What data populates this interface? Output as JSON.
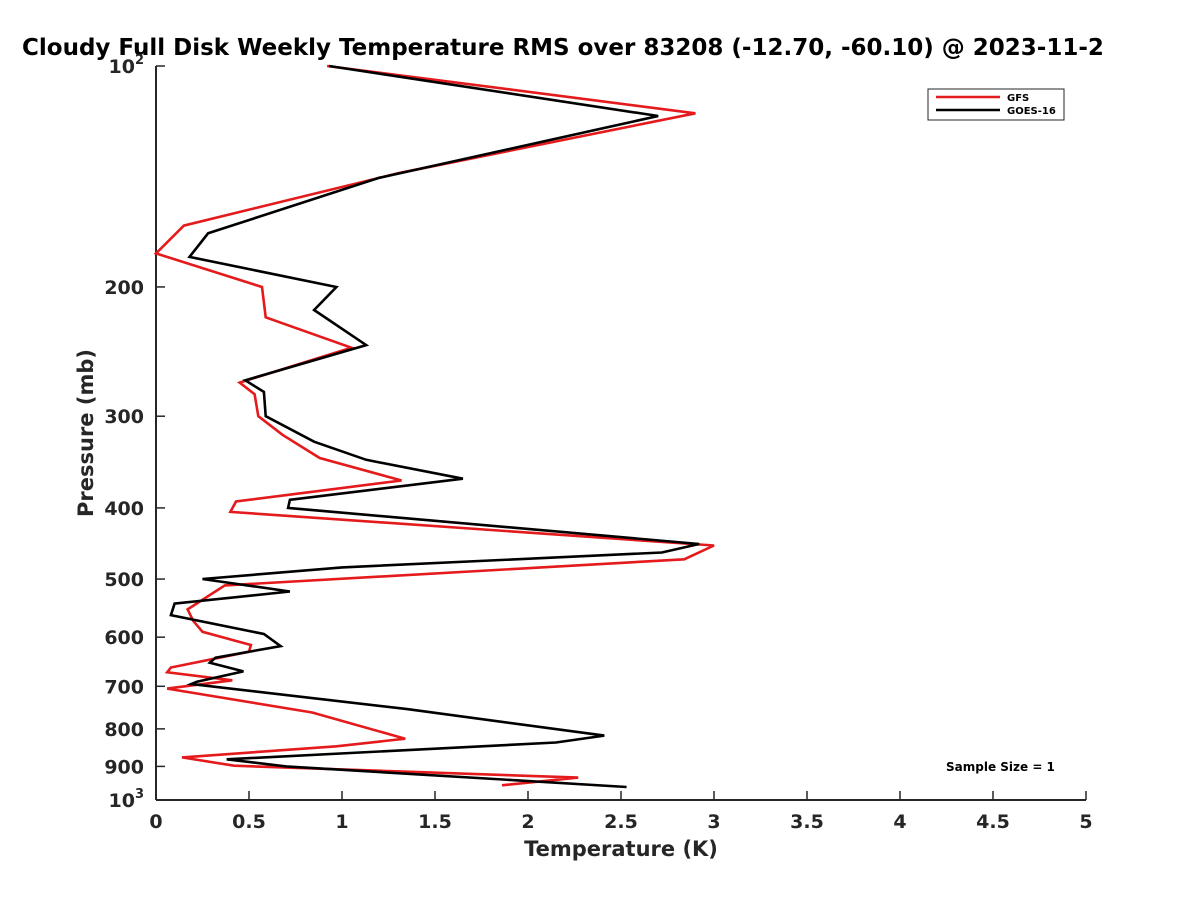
{
  "chart_data": {
    "type": "line",
    "title": "Cloudy Full Disk Weekly Temperature RMS over 83208 (-12.70, -60.10) @ 2023-11-2",
    "xlabel": "Temperature (K)",
    "ylabel": "Pressure (mb)",
    "xlim": [
      0,
      5
    ],
    "ylim": [
      100,
      1000
    ],
    "y_scale": "log",
    "y_reversed": true,
    "x_ticks": [
      "0",
      "0.5",
      "1",
      "1.5",
      "2",
      "2.5",
      "3",
      "3.5",
      "4",
      "4.5",
      "5"
    ],
    "y_ticks": [
      {
        "value": 100,
        "base": "10",
        "exp": "2"
      },
      {
        "value": 200,
        "label": "200"
      },
      {
        "value": 300,
        "label": "300"
      },
      {
        "value": 400,
        "label": "400"
      },
      {
        "value": 500,
        "label": "500"
      },
      {
        "value": 600,
        "label": "600"
      },
      {
        "value": 700,
        "label": "700"
      },
      {
        "value": 800,
        "label": "800"
      },
      {
        "value": 900,
        "label": "900"
      },
      {
        "value": 1000,
        "base": "10",
        "exp": "3"
      }
    ],
    "grid": false,
    "legend": {
      "placement": "top-right"
    },
    "annotation": "Sample Size = 1",
    "series": [
      {
        "name": "GFS",
        "color": "#e41a1c",
        "points": [
          [
            0.92,
            100
          ],
          [
            2.9,
            116
          ],
          [
            1.3,
            140
          ],
          [
            0.15,
            165
          ],
          [
            0,
            180
          ],
          [
            0.57,
            200
          ],
          [
            0.59,
            220
          ],
          [
            1.05,
            242
          ],
          [
            0.45,
            270
          ],
          [
            0.53,
            280
          ],
          [
            0.55,
            300
          ],
          [
            0.68,
            318
          ],
          [
            0.88,
            342
          ],
          [
            1.32,
            367
          ],
          [
            0.43,
            392
          ],
          [
            0.4,
            405
          ],
          [
            3.0,
            450
          ],
          [
            2.84,
            470
          ],
          [
            0.37,
            510
          ],
          [
            0.17,
            550
          ],
          [
            0.2,
            570
          ],
          [
            0.25,
            590
          ],
          [
            0.51,
            615
          ],
          [
            0.5,
            628
          ],
          [
            0.08,
            660
          ],
          [
            0.06,
            670
          ],
          [
            0.41,
            687
          ],
          [
            0.06,
            705
          ],
          [
            0.84,
            760
          ],
          [
            1.34,
            825
          ],
          [
            0.97,
            845
          ],
          [
            0.14,
            875
          ],
          [
            0.42,
            898
          ],
          [
            2.27,
            932
          ],
          [
            1.86,
            955
          ]
        ]
      },
      {
        "name": "GOES-16",
        "color": "#000000",
        "points": [
          [
            0.93,
            100
          ],
          [
            2.7,
            117
          ],
          [
            1.2,
            142
          ],
          [
            0.28,
            169
          ],
          [
            0.18,
            182
          ],
          [
            0.97,
            200
          ],
          [
            0.85,
            215
          ],
          [
            1.13,
            240
          ],
          [
            0.48,
            268
          ],
          [
            0.58,
            278
          ],
          [
            0.59,
            300
          ],
          [
            0.85,
            325
          ],
          [
            1.13,
            344
          ],
          [
            1.65,
            365
          ],
          [
            0.72,
            390
          ],
          [
            0.71,
            400
          ],
          [
            2.92,
            448
          ],
          [
            2.72,
            460
          ],
          [
            1.0,
            482
          ],
          [
            0.25,
            500
          ],
          [
            0.72,
            520
          ],
          [
            0.1,
            540
          ],
          [
            0.08,
            560
          ],
          [
            0.58,
            594
          ],
          [
            0.67,
            617
          ],
          [
            0.32,
            640
          ],
          [
            0.29,
            650
          ],
          [
            0.47,
            668
          ],
          [
            0.22,
            690
          ],
          [
            0.19,
            695
          ],
          [
            1.35,
            752
          ],
          [
            2.41,
            817
          ],
          [
            2.15,
            835
          ],
          [
            0.38,
            880
          ],
          [
            0.7,
            900
          ],
          [
            2.53,
            960
          ]
        ]
      }
    ]
  }
}
